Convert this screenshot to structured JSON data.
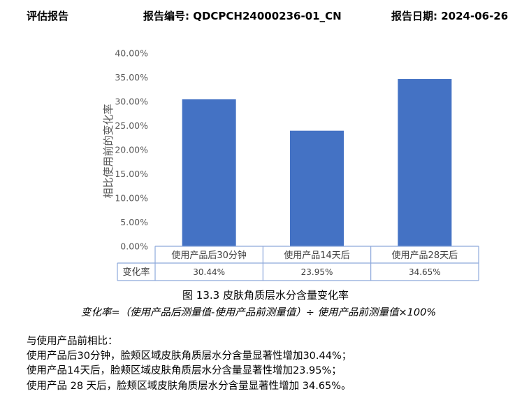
{
  "header": {
    "left": "评估报告",
    "report_no": "报告编号: QDCPCH24000236-01_CN",
    "report_date": "报告日期: 2024-06-26"
  },
  "chart_data": {
    "type": "bar",
    "categories": [
      "使用产品后30分钟",
      "使用产品14天后",
      "使用产品28天后"
    ],
    "values": [
      30.44,
      23.95,
      34.65
    ],
    "value_labels": [
      "30.44%",
      "23.95%",
      "34.65%"
    ],
    "ylabel": "相比使用前的变化率",
    "ylim": [
      0,
      40
    ],
    "yticks": [
      "0.00%",
      "5.00%",
      "10.00%",
      "15.00%",
      "20.00%",
      "25.00%",
      "30.00%",
      "35.00%",
      "40.00%"
    ],
    "table_row_label": "变化率",
    "bar_color": "#4472C4",
    "grid": false
  },
  "figure": {
    "caption": "图 13.3 皮肤角质层水分含量变化率",
    "formula": "变化率=（使用产品后测量值-使用产品前测量值）÷ 使用产品前测量值×100%"
  },
  "text": {
    "lines": [
      "与使用产品前相比：",
      "使用产品后30分钟，脸颊区域皮肤角质层水分含量显著性增加30.44%；",
      "使用产品14天后，脸颊区域皮肤角质层水分含量显著性增加23.95%；",
      "使用产品 28 天后，脸颊区域皮肤角质层水分含量显著性增加 34.65%。"
    ]
  }
}
